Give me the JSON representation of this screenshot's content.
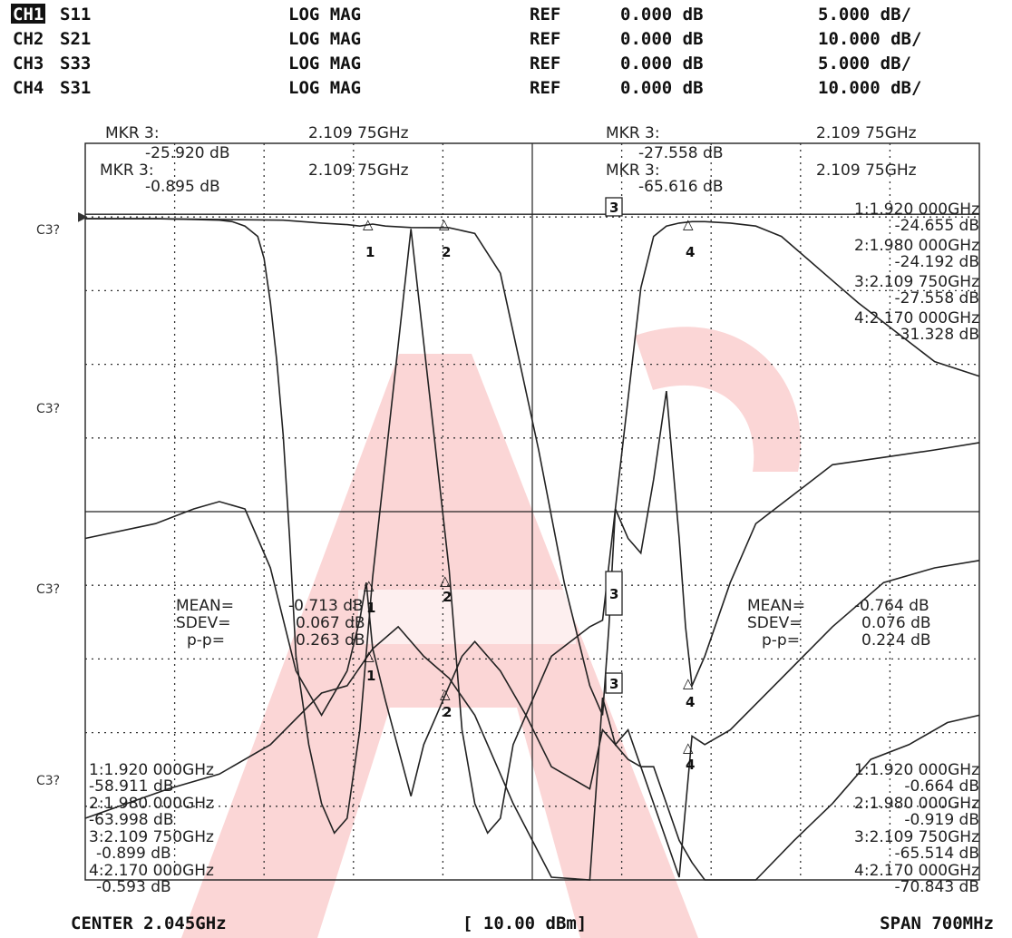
{
  "channels": [
    {
      "ch": "CH1",
      "param": "S11",
      "format": "LOG MAG",
      "ref_label": "REF",
      "ref": "0.000 dB",
      "scale": "5.000 dB/",
      "active": true
    },
    {
      "ch": "CH2",
      "param": "S21",
      "format": "LOG MAG",
      "ref_label": "REF",
      "ref": "0.000 dB",
      "scale": "10.000 dB/",
      "active": false
    },
    {
      "ch": "CH3",
      "param": "S33",
      "format": "LOG MAG",
      "ref_label": "REF",
      "ref": "0.000 dB",
      "scale": "5.000 dB/",
      "active": false
    },
    {
      "ch": "CH4",
      "param": "S31",
      "format": "LOG MAG",
      "ref_label": "REF",
      "ref": "0.000 dB",
      "scale": "10.000 dB/",
      "active": false
    }
  ],
  "row_labels": [
    "C3?",
    "C3?",
    "C3?",
    "C3?"
  ],
  "footer": {
    "center": "CENTER 2.045GHz",
    "power": "[ 10.00 dBm]",
    "span": "SPAN 700MHz"
  },
  "annotations": {
    "top_left": {
      "line1_label": "MKR  3:",
      "line1_freq": "2.109 75GHz",
      "line1_val": "-25.920 dB",
      "line2_label": "MKR  3:",
      "line2_freq": "2.109 75GHz",
      "line2_val": "-0.895 dB"
    },
    "top_right": {
      "line1_label": "MKR  3:",
      "line1_freq": "2.109 75GHz",
      "line1_val": "-27.558 dB",
      "line2_label": "MKR  3:",
      "line2_freq": "2.109 75GHz",
      "line2_val": "-65.616 dB"
    },
    "right_top_list": [
      "1:1.920 000GHz",
      "-24.655 dB",
      "2:1.980 000GHz",
      "-24.192 dB",
      "3:2.109 750GHz",
      "-27.558 dB",
      "4:2.170 000GHz",
      "-31.328 dB"
    ],
    "stats_left": {
      "mean_label": "MEAN=",
      "mean": "-0.713 dB",
      "sdev_label": "SDEV=",
      "sdev": "0.067 dB",
      "pp_label": "p-p=",
      "pp": "0.263 dB"
    },
    "stats_right": {
      "mean_label": "MEAN=",
      "mean": "-0.764 dB",
      "sdev_label": "SDEV=",
      "sdev": "0.076 dB",
      "pp_label": "p-p=",
      "pp": "0.224 dB"
    },
    "bottom_left_list": [
      "1:1.920 000GHz",
      "-58.911 dB",
      "2:1.980 000GHz",
      "-63.998 dB",
      "3:2.109 750GHz",
      "-0.899 dB",
      "4:2.170 000GHz",
      "-0.593 dB"
    ],
    "bottom_right_list": [
      "1:1.920 000GHz",
      "-0.664 dB",
      "2:1.980 000GHz",
      "-0.919 dB",
      "3:2.109 750GHz",
      "-65.514 dB",
      "4:2.170 000GHz",
      "-70.843 dB"
    ]
  },
  "colors": {
    "trace": "#222222",
    "watermark": "#fbd6d6",
    "background": "#ffffff"
  },
  "chart_data": {
    "type": "line",
    "x_unit": "GHz",
    "xlim": [
      1.695,
      2.395
    ],
    "grid": "on",
    "grid_divisions": {
      "x": 10,
      "y": 10
    },
    "series": [
      {
        "x": [
          1.695,
          1.72,
          1.75,
          1.78,
          1.8,
          1.81,
          1.82,
          1.83,
          1.835,
          1.84,
          1.845,
          1.85,
          1.855,
          1.86,
          1.87,
          1.88,
          1.89,
          1.9,
          1.91,
          1.92,
          1.95,
          1.98,
          1.99,
          2.0,
          2.01,
          2.02,
          2.03,
          2.06,
          2.09,
          2.1,
          2.11,
          2.13,
          2.14,
          2.15,
          2.16,
          2.17,
          2.18,
          2.2,
          2.22,
          2.24,
          2.26,
          2.28,
          2.3,
          2.33,
          2.36,
          2.395
        ],
        "y": [
          -0.3,
          -0.3,
          -0.3,
          -0.35,
          -0.4,
          -0.5,
          -0.8,
          -1.5,
          -3,
          -6,
          -10,
          -15,
          -22,
          -30,
          -36,
          -40,
          -42,
          -41,
          -35,
          -24.655,
          -1,
          -24.192,
          -35,
          -40,
          -42,
          -41,
          -36,
          -30,
          -28,
          -27.558,
          -20,
          -5,
          -1.5,
          -0.8,
          -0.6,
          -0.5,
          -0.5,
          -0.6,
          -0.8,
          -1.5,
          -3,
          -4.5,
          -6,
          -8,
          -10,
          -11
        ]
      },
      {
        "x": [
          1.695,
          1.75,
          1.78,
          1.8,
          1.82,
          1.83,
          1.84,
          1.86,
          1.88,
          1.9,
          1.91,
          1.915,
          1.92,
          1.93,
          1.95,
          1.96,
          1.97,
          1.98,
          1.99,
          2.0,
          2.02,
          2.04,
          2.06,
          2.09,
          2.1,
          2.11,
          2.12,
          2.13,
          2.14,
          2.15,
          2.16,
          2.17,
          2.18,
          2.2,
          2.22,
          2.25,
          2.28,
          2.31,
          2.34,
          2.37,
          2.395
        ],
        "y": [
          -44,
          -42,
          -40,
          -39,
          -40,
          -44,
          -48,
          -62,
          -68,
          -62,
          -55,
          -50,
          -58.911,
          -66,
          -79,
          -72,
          -68,
          -63.998,
          -60,
          -58,
          -62,
          -68,
          -75,
          -78,
          -70,
          -72,
          -74,
          -75,
          -75,
          -80,
          -85,
          -88,
          -92,
          -95,
          -92,
          -85,
          -80,
          -74,
          -72,
          -69,
          -68
        ]
      },
      {
        "x": [
          1.695,
          1.75,
          1.8,
          1.85,
          1.88,
          1.9,
          1.91,
          1.92,
          1.93,
          1.95,
          1.98,
          2.0,
          2.02,
          2.03,
          2.05,
          2.07,
          2.09,
          2.1,
          2.105,
          2.11,
          2.12,
          2.13,
          2.14,
          2.15,
          2.16,
          2.165,
          2.17,
          2.18,
          2.2,
          2.22,
          2.25,
          2.28,
          2.32,
          2.36,
          2.395
        ],
        "y": [
          -0.3,
          -0.3,
          -0.35,
          -0.4,
          -0.6,
          -0.7,
          -0.8,
          -0.664,
          -0.8,
          -0.9,
          -0.919,
          -1.3,
          -4,
          -8,
          -16,
          -25,
          -32,
          -34,
          -28,
          -20,
          -22,
          -23,
          -18,
          -12,
          -22,
          -28,
          -32,
          -30,
          -25,
          -21,
          -19,
          -17,
          -16.5,
          -16,
          -15.5
        ]
      },
      {
        "x": [
          1.695,
          1.76,
          1.8,
          1.84,
          1.88,
          1.9,
          1.92,
          1.94,
          1.96,
          1.98,
          2.0,
          2.03,
          2.06,
          2.09,
          2.1,
          2.11,
          2.12,
          2.14,
          2.16,
          2.17,
          2.18,
          2.2,
          2.24,
          2.28,
          2.32,
          2.36,
          2.395
        ],
        "y": [
          -82,
          -78,
          -76,
          -72,
          -65,
          -64,
          -59,
          -56,
          -60,
          -63,
          -68,
          -80,
          -90,
          -95,
          -65.616,
          -72,
          -70,
          -80,
          -90,
          -70.843,
          -72,
          -70,
          -63,
          -56,
          -50,
          -48,
          -47
        ]
      }
    ]
  }
}
